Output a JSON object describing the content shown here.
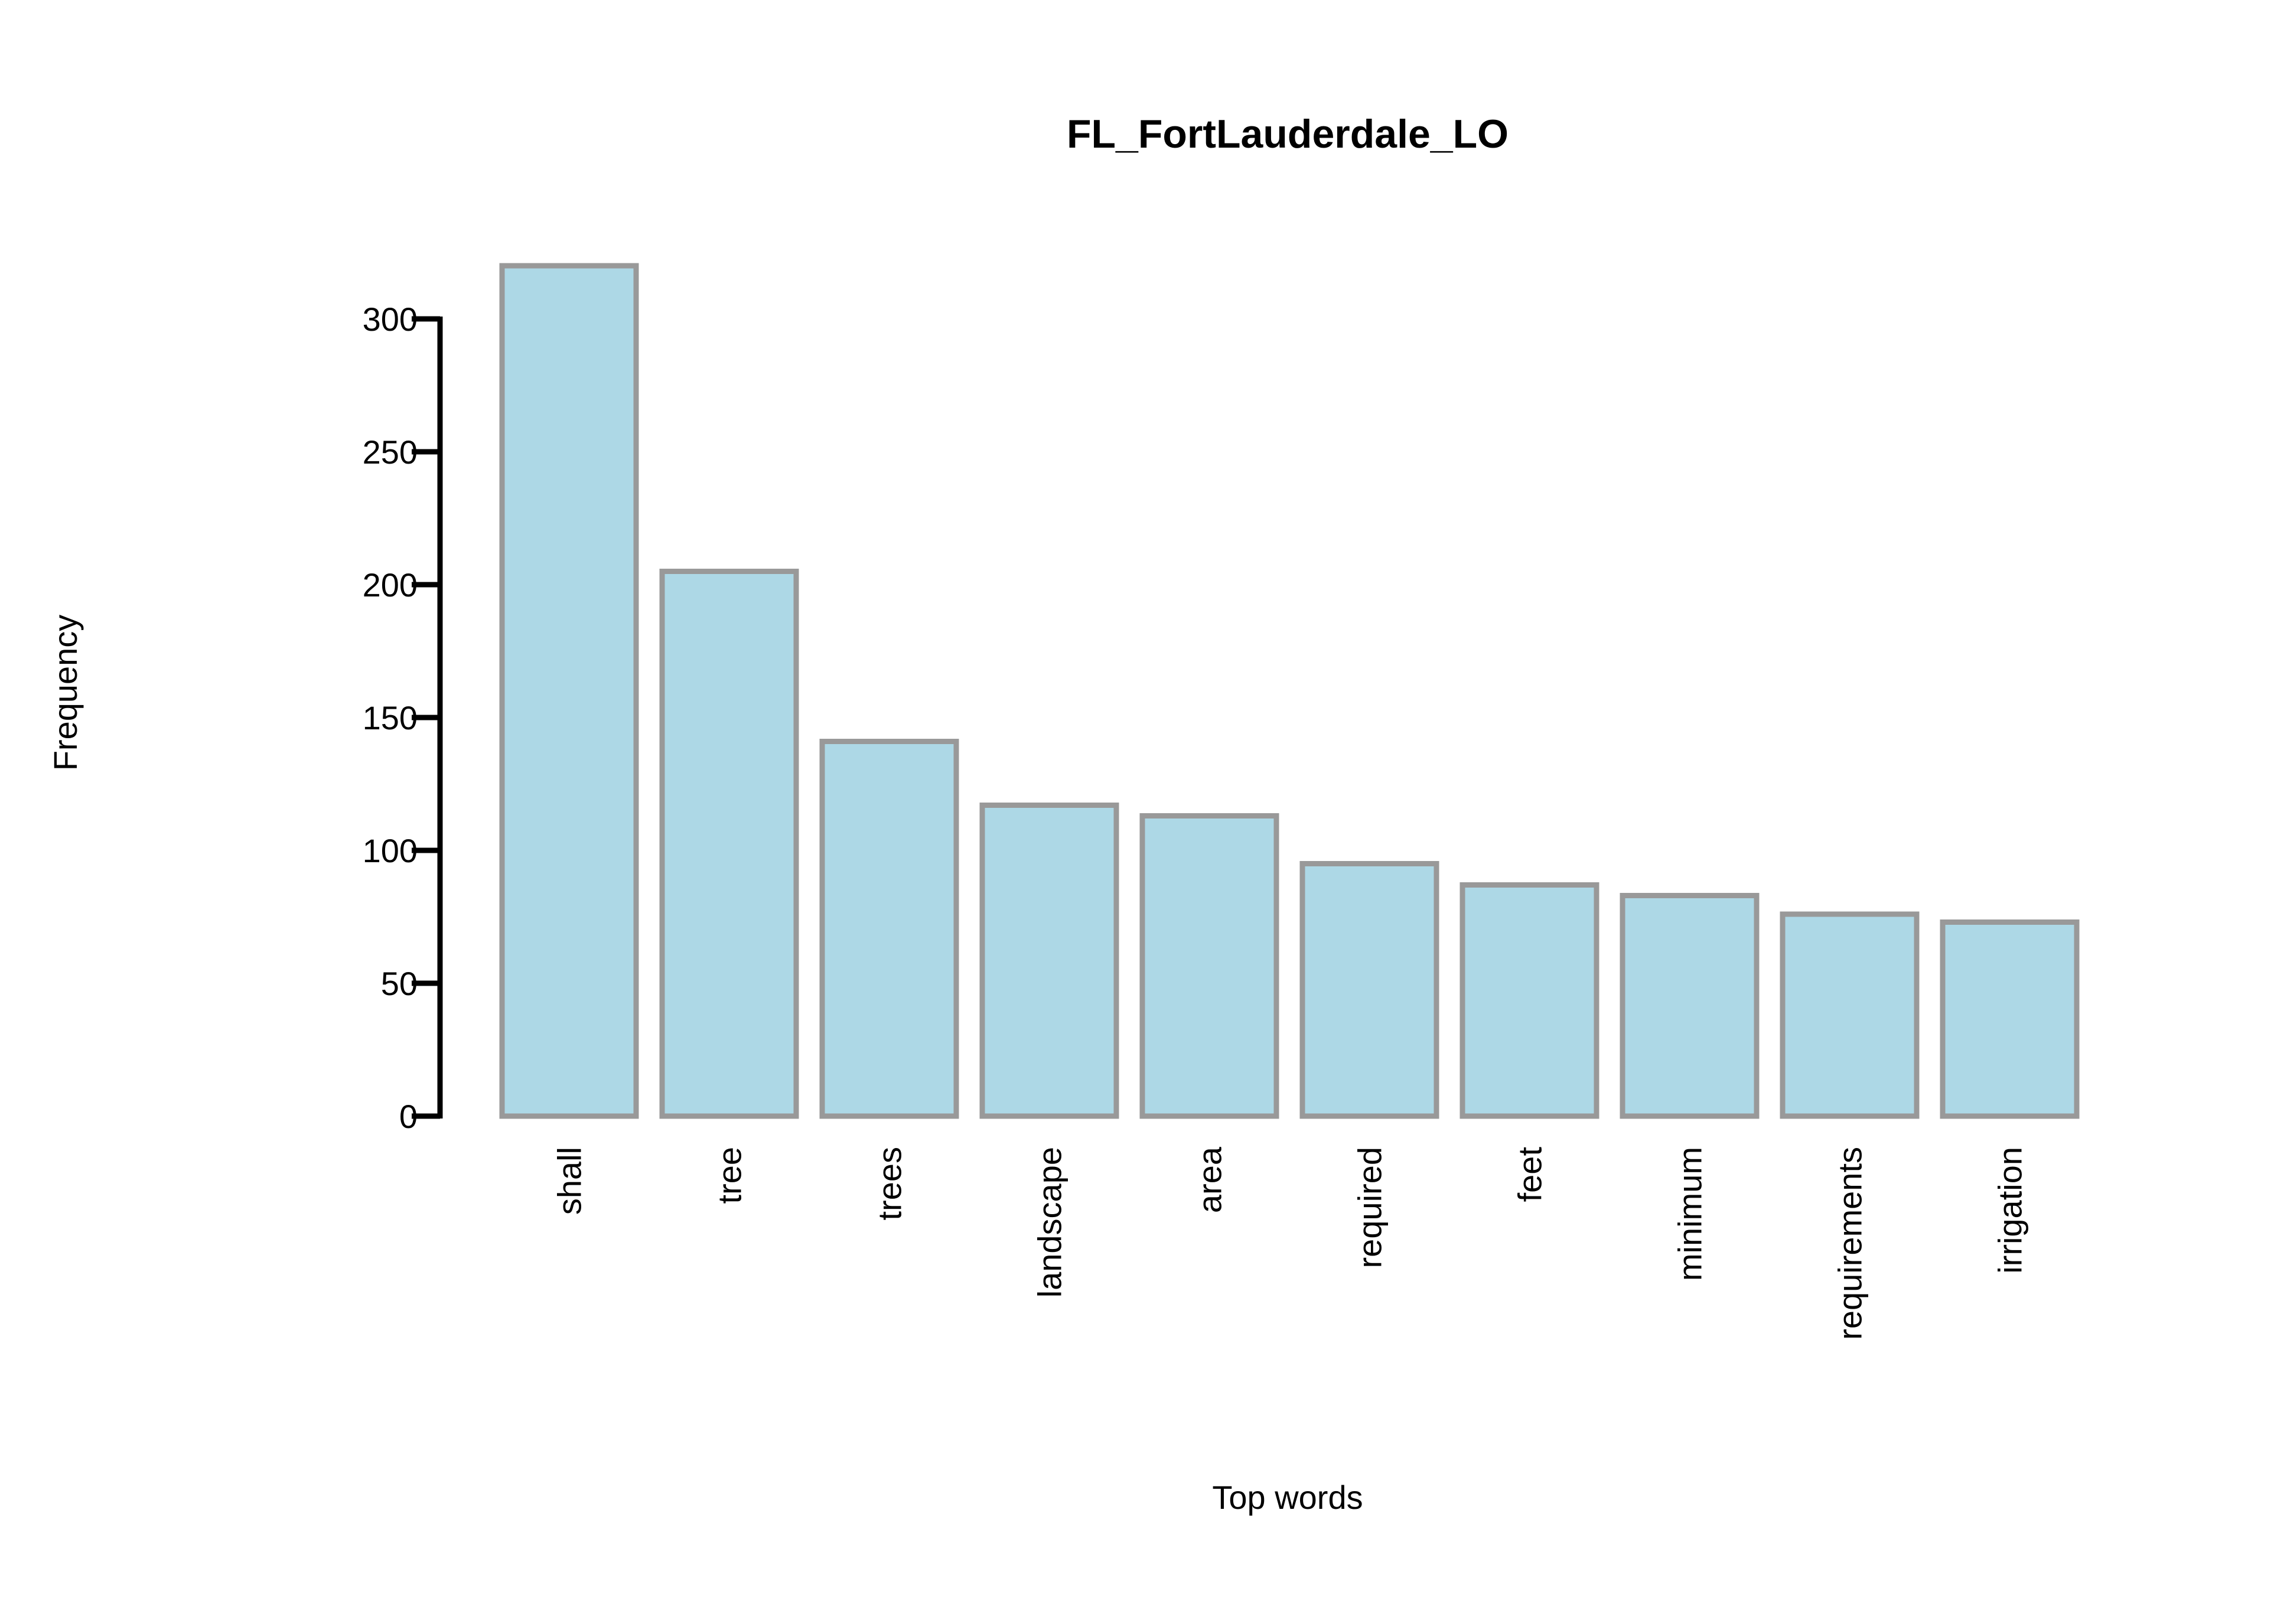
{
  "chart_data": {
    "type": "bar",
    "title": "FL_FortLauderdale_LO",
    "xlabel": "Top words",
    "ylabel": "Frequency",
    "categories": [
      "shall",
      "tree",
      "trees",
      "landscape",
      "area",
      "required",
      "feet",
      "minimum",
      "requirements",
      "irrigation"
    ],
    "values": [
      320,
      205,
      141,
      117,
      113,
      95,
      87,
      83,
      76,
      73
    ],
    "ylim": [
      0,
      300
    ],
    "yticks": [
      0,
      50,
      100,
      150,
      200,
      250,
      300
    ],
    "grid": false,
    "legend": "none",
    "colors": {
      "bar_fill": "#add8e6",
      "bar_stroke": "#999999",
      "axis": "#000000",
      "text": "#000000"
    }
  }
}
